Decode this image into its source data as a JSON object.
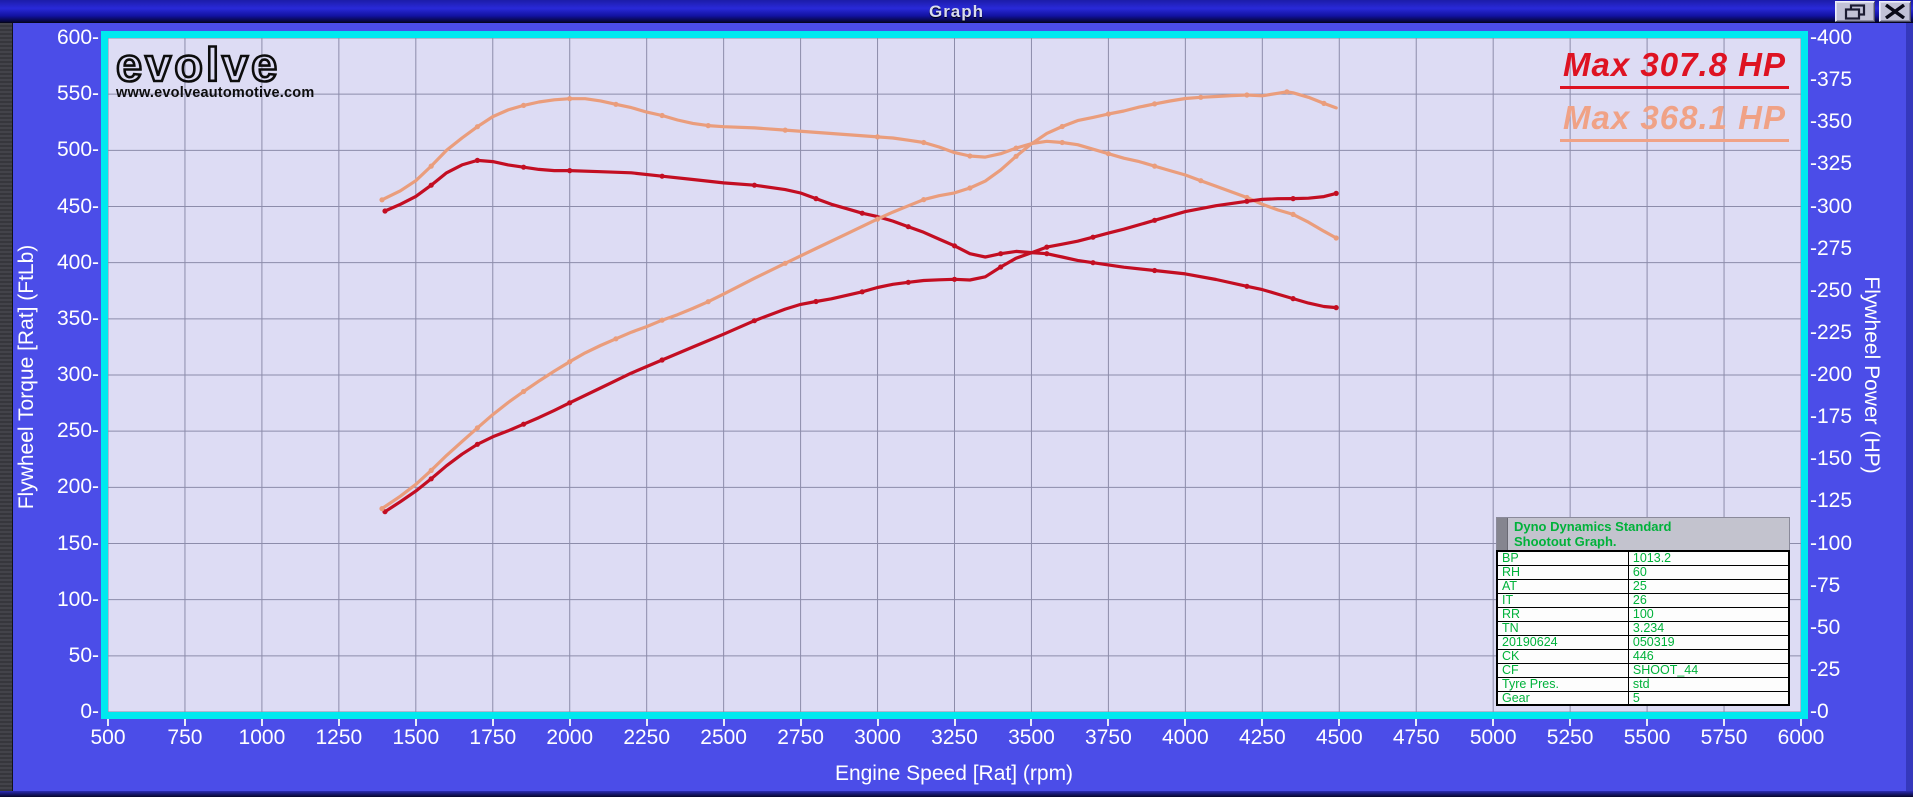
{
  "window": {
    "title": "Graph",
    "controls": [
      {
        "icon": "restore-icon"
      },
      {
        "icon": "close-icon"
      }
    ]
  },
  "branding": {
    "logo_text": "evolve",
    "website": "www.evolveautomotive.com"
  },
  "legend": {
    "items": [
      {
        "label": "Max 307.8 HP",
        "color": "#de1322"
      },
      {
        "label": "Max 368.1 HP",
        "color": "#f0a286"
      }
    ]
  },
  "info_panel": {
    "title_line1": "Dyno Dynamics Standard",
    "title_line2": "Shootout Graph.",
    "text_color": "#00b23a",
    "rows": [
      [
        "BP",
        "1013.2"
      ],
      [
        "RH",
        "60"
      ],
      [
        "AT",
        "25"
      ],
      [
        "IT",
        "26"
      ],
      [
        "RR",
        "100"
      ],
      [
        "TN",
        "3.234"
      ],
      [
        "20190624",
        "050319"
      ],
      [
        "CK",
        "446"
      ],
      [
        "CF",
        "SHOOT_44"
      ],
      [
        "Tyre Pres.",
        "std"
      ],
      [
        "Gear",
        "5"
      ]
    ]
  },
  "chart_data": {
    "type": "line",
    "title": "",
    "xlabel": "Engine Speed [Rat] (rpm)",
    "ylabel_left": "Flywheel Torque [Rat] (FtLb)",
    "ylabel_right": "Flywheel Power (HP)",
    "grid": true,
    "legend_position": "top-right",
    "x_range": [
      500,
      6000
    ],
    "y_left_range": [
      0,
      600
    ],
    "y_right_range": [
      0,
      400
    ],
    "x_ticks": [
      500,
      750,
      1000,
      1250,
      1500,
      1750,
      2000,
      2250,
      2500,
      2750,
      3000,
      3250,
      3500,
      3750,
      4000,
      4250,
      4500,
      4750,
      5000,
      5250,
      5500,
      5750,
      6000
    ],
    "y_left_ticks": [
      0,
      50,
      100,
      150,
      200,
      250,
      300,
      350,
      400,
      450,
      500,
      550,
      600
    ],
    "y_right_ticks": [
      0,
      25,
      50,
      75,
      100,
      125,
      150,
      175,
      200,
      225,
      250,
      275,
      300,
      325,
      350,
      375,
      400
    ],
    "colors": {
      "plot_bg": "#dddcf4",
      "grid": "#8c8caa",
      "frame": "#00e9ef",
      "window_bg": "#4b4de8",
      "tick_text": "#ffffff",
      "run1": "#c30e22",
      "run2": "#ea9d7c"
    },
    "series": [
      {
        "name": "Flywheel Torque run 1 (FtLb)",
        "axis": "left",
        "color": "#c30e22",
        "marker_every": 3,
        "points": [
          [
            1400,
            446
          ],
          [
            1450,
            452
          ],
          [
            1500,
            459
          ],
          [
            1550,
            469
          ],
          [
            1600,
            480
          ],
          [
            1650,
            487
          ],
          [
            1700,
            491
          ],
          [
            1750,
            490
          ],
          [
            1800,
            487
          ],
          [
            1850,
            485
          ],
          [
            1900,
            483
          ],
          [
            1950,
            482
          ],
          [
            2000,
            482
          ],
          [
            2100,
            481
          ],
          [
            2200,
            480
          ],
          [
            2300,
            477
          ],
          [
            2400,
            474
          ],
          [
            2500,
            471
          ],
          [
            2600,
            469
          ],
          [
            2700,
            465
          ],
          [
            2750,
            462
          ],
          [
            2800,
            457
          ],
          [
            2850,
            452
          ],
          [
            2900,
            448
          ],
          [
            2950,
            444
          ],
          [
            3000,
            441
          ],
          [
            3050,
            437
          ],
          [
            3100,
            432
          ],
          [
            3150,
            427
          ],
          [
            3200,
            421
          ],
          [
            3250,
            415
          ],
          [
            3300,
            408
          ],
          [
            3350,
            405
          ],
          [
            3400,
            408
          ],
          [
            3450,
            410
          ],
          [
            3500,
            409
          ],
          [
            3550,
            408
          ],
          [
            3600,
            405
          ],
          [
            3650,
            402
          ],
          [
            3700,
            400
          ],
          [
            3750,
            398
          ],
          [
            3800,
            396
          ],
          [
            3900,
            393
          ],
          [
            4000,
            390
          ],
          [
            4100,
            385
          ],
          [
            4200,
            379
          ],
          [
            4250,
            376
          ],
          [
            4300,
            372
          ],
          [
            4350,
            368
          ],
          [
            4400,
            364
          ],
          [
            4450,
            361
          ],
          [
            4490,
            360
          ]
        ]
      },
      {
        "name": "Flywheel Torque run 2 (FtLb)",
        "axis": "left",
        "color": "#ea9d7c",
        "marker_every": 3,
        "points": [
          [
            1390,
            456
          ],
          [
            1450,
            464
          ],
          [
            1500,
            473
          ],
          [
            1550,
            486
          ],
          [
            1600,
            500
          ],
          [
            1650,
            511
          ],
          [
            1700,
            521
          ],
          [
            1750,
            530
          ],
          [
            1800,
            536
          ],
          [
            1850,
            540
          ],
          [
            1900,
            543
          ],
          [
            1950,
            545
          ],
          [
            2000,
            546
          ],
          [
            2050,
            546
          ],
          [
            2100,
            544
          ],
          [
            2150,
            541
          ],
          [
            2200,
            538
          ],
          [
            2250,
            534
          ],
          [
            2300,
            531
          ],
          [
            2350,
            527
          ],
          [
            2400,
            524
          ],
          [
            2450,
            522
          ],
          [
            2500,
            521
          ],
          [
            2600,
            520
          ],
          [
            2700,
            518
          ],
          [
            2800,
            516
          ],
          [
            2900,
            514
          ],
          [
            3000,
            512
          ],
          [
            3050,
            511
          ],
          [
            3100,
            509
          ],
          [
            3150,
            507
          ],
          [
            3200,
            503
          ],
          [
            3250,
            498
          ],
          [
            3300,
            495
          ],
          [
            3350,
            494
          ],
          [
            3400,
            497
          ],
          [
            3450,
            502
          ],
          [
            3500,
            506
          ],
          [
            3550,
            508
          ],
          [
            3600,
            507
          ],
          [
            3650,
            505
          ],
          [
            3700,
            501
          ],
          [
            3750,
            497
          ],
          [
            3800,
            493
          ],
          [
            3850,
            490
          ],
          [
            3900,
            486
          ],
          [
            3950,
            482
          ],
          [
            4000,
            478
          ],
          [
            4050,
            473
          ],
          [
            4100,
            468
          ],
          [
            4150,
            463
          ],
          [
            4200,
            458
          ],
          [
            4250,
            452
          ],
          [
            4300,
            447
          ],
          [
            4350,
            443
          ],
          [
            4400,
            436
          ],
          [
            4450,
            428
          ],
          [
            4490,
            422
          ]
        ]
      },
      {
        "name": "Flywheel Power run 1 (HP), Max 307.8 HP",
        "axis": "right",
        "color": "#c30e22",
        "marker_every": 3,
        "max_hp": 307.8,
        "points": [
          [
            1400,
            118.9
          ],
          [
            1450,
            124.8
          ],
          [
            1500,
            131.1
          ],
          [
            1550,
            138.4
          ],
          [
            1600,
            146.2
          ],
          [
            1650,
            153.0
          ],
          [
            1700,
            158.9
          ],
          [
            1750,
            163.3
          ],
          [
            1800,
            166.9
          ],
          [
            1850,
            170.8
          ],
          [
            1900,
            174.7
          ],
          [
            1950,
            179.0
          ],
          [
            2000,
            183.5
          ],
          [
            2100,
            192.3
          ],
          [
            2200,
            201.1
          ],
          [
            2300,
            208.9
          ],
          [
            2400,
            216.6
          ],
          [
            2500,
            224.2
          ],
          [
            2600,
            232.2
          ],
          [
            2700,
            239.1
          ],
          [
            2750,
            241.9
          ],
          [
            2800,
            243.6
          ],
          [
            2850,
            245.2
          ],
          [
            2900,
            247.3
          ],
          [
            2950,
            249.4
          ],
          [
            3000,
            251.9
          ],
          [
            3050,
            253.8
          ],
          [
            3100,
            255.0
          ],
          [
            3150,
            256.1
          ],
          [
            3200,
            256.5
          ],
          [
            3250,
            256.8
          ],
          [
            3300,
            256.4
          ],
          [
            3350,
            258.3
          ],
          [
            3400,
            264.1
          ],
          [
            3450,
            269.3
          ],
          [
            3500,
            272.6
          ],
          [
            3550,
            275.9
          ],
          [
            3600,
            277.6
          ],
          [
            3650,
            279.4
          ],
          [
            3700,
            281.8
          ],
          [
            3750,
            284.2
          ],
          [
            3800,
            286.5
          ],
          [
            3900,
            291.8
          ],
          [
            4000,
            297.0
          ],
          [
            4100,
            300.5
          ],
          [
            4200,
            303.1
          ],
          [
            4250,
            304.2
          ],
          [
            4300,
            304.6
          ],
          [
            4350,
            304.7
          ],
          [
            4400,
            304.9
          ],
          [
            4450,
            305.9
          ],
          [
            4490,
            307.8
          ]
        ]
      },
      {
        "name": "Flywheel Power run 2 (HP), Max 368.1 HP",
        "axis": "right",
        "color": "#ea9d7c",
        "marker_every": 3,
        "max_hp": 368.1,
        "points": [
          [
            1390,
            120.7
          ],
          [
            1450,
            128.1
          ],
          [
            1500,
            135.1
          ],
          [
            1550,
            143.4
          ],
          [
            1600,
            152.3
          ],
          [
            1650,
            160.5
          ],
          [
            1700,
            168.6
          ],
          [
            1750,
            176.5
          ],
          [
            1800,
            183.7
          ],
          [
            1850,
            190.2
          ],
          [
            1900,
            196.4
          ],
          [
            1950,
            202.3
          ],
          [
            2000,
            207.9
          ],
          [
            2050,
            213.1
          ],
          [
            2100,
            217.5
          ],
          [
            2150,
            221.5
          ],
          [
            2200,
            225.4
          ],
          [
            2250,
            228.7
          ],
          [
            2300,
            232.5
          ],
          [
            2350,
            235.8
          ],
          [
            2400,
            239.5
          ],
          [
            2450,
            243.5
          ],
          [
            2500,
            248.0
          ],
          [
            2600,
            257.4
          ],
          [
            2700,
            266.3
          ],
          [
            2800,
            275.1
          ],
          [
            2900,
            283.8
          ],
          [
            3000,
            292.5
          ],
          [
            3050,
            296.7
          ],
          [
            3100,
            300.4
          ],
          [
            3150,
            304.1
          ],
          [
            3200,
            306.4
          ],
          [
            3250,
            308.1
          ],
          [
            3300,
            311.0
          ],
          [
            3350,
            315.1
          ],
          [
            3400,
            321.7
          ],
          [
            3450,
            329.8
          ],
          [
            3500,
            337.2
          ],
          [
            3550,
            343.4
          ],
          [
            3600,
            347.5
          ],
          [
            3650,
            351.0
          ],
          [
            3700,
            352.9
          ],
          [
            3750,
            354.9
          ],
          [
            3800,
            356.7
          ],
          [
            3850,
            359.0
          ],
          [
            3900,
            360.9
          ],
          [
            3950,
            362.6
          ],
          [
            4000,
            364.1
          ],
          [
            4050,
            364.8
          ],
          [
            4100,
            365.3
          ],
          [
            4150,
            365.8
          ],
          [
            4200,
            366.2
          ],
          [
            4250,
            365.7
          ],
          [
            4300,
            367.2
          ],
          [
            4330,
            368.1
          ],
          [
            4350,
            367.5
          ],
          [
            4400,
            364.8
          ],
          [
            4450,
            361.2
          ],
          [
            4490,
            358.5
          ]
        ]
      }
    ]
  }
}
